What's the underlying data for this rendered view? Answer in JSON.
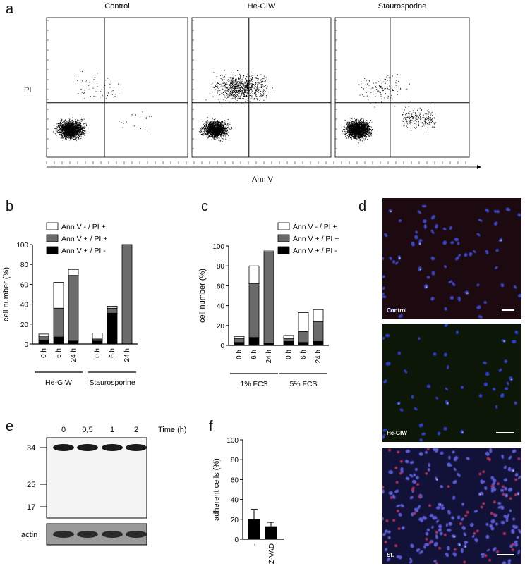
{
  "panels": {
    "a": {
      "letter": "a",
      "plots": [
        {
          "title": "Control",
          "seed": 11,
          "main": 1900,
          "upper": 60,
          "right": 18
        },
        {
          "title": "He-GIW",
          "seed": 23,
          "main": 1500,
          "upper": 900,
          "right": 0
        },
        {
          "title": "Staurosporine",
          "seed": 37,
          "main": 2300,
          "upper": 140,
          "right": 220
        }
      ],
      "ylabel": "PI",
      "xlabel": "Ann V"
    },
    "b": {
      "letter": "b"
    },
    "c": {
      "letter": "c"
    },
    "d": {
      "letter": "d",
      "images": [
        {
          "label": "Control",
          "bg": "#1d0a10",
          "cells": 70,
          "cell_color": "#3b47c8",
          "red": 0
        },
        {
          "label": "He-GIW",
          "bg": "#0d1708",
          "cells": 45,
          "cell_color": "#2f3fd0",
          "red": 0
        },
        {
          "label": "St.",
          "bg": "#121238",
          "cells": 170,
          "cell_color": "#5b5cd6",
          "red": 60
        }
      ]
    },
    "e": {
      "letter": "e"
    },
    "f": {
      "letter": "f"
    }
  },
  "chart_data": [
    {
      "panel": "b",
      "type": "bar",
      "stacked": true,
      "ylabel": "cell number (%)",
      "ylim": [
        0,
        100
      ],
      "yticks": [
        0,
        20,
        40,
        60,
        80,
        100
      ],
      "legend": [
        "Ann V - / PI +",
        "Ann V + / PI +",
        "Ann V + / PI -"
      ],
      "groups": [
        {
          "name": "He-GIW",
          "categories": [
            "0 h",
            "6 h",
            "24 h"
          ],
          "series": {
            "Ann V + / PI -": [
              4,
              7,
              3
            ],
            "Ann V + / PI +": [
              4,
              29,
              66
            ],
            "Ann V - / PI +": [
              2,
              26,
              6
            ]
          }
        },
        {
          "name": "Staurosporine",
          "categories": [
            "0 h",
            "6 h",
            "24 h"
          ],
          "series": {
            "Ann V + / PI -": [
              3,
              31,
              0
            ],
            "Ann V + / PI +": [
              2,
              5,
              100
            ],
            "Ann V - / PI +": [
              6,
              2,
              0
            ]
          }
        }
      ]
    },
    {
      "panel": "c",
      "type": "bar",
      "stacked": true,
      "ylabel": "cell number (%)",
      "ylim": [
        0,
        100
      ],
      "yticks": [
        0,
        20,
        40,
        60,
        80,
        100
      ],
      "legend": [
        "Ann V - / PI +",
        "Ann V + / PI +",
        "Ann V + / PI -"
      ],
      "groups": [
        {
          "name": "1% FCS",
          "categories": [
            "0 h",
            "6 h",
            "24 h"
          ],
          "series": {
            "Ann V + / PI -": [
              3,
              8,
              2
            ],
            "Ann V + / PI +": [
              4,
              54,
              92
            ],
            "Ann V - / PI +": [
              2,
              18,
              1
            ]
          }
        },
        {
          "name": "5% FCS",
          "categories": [
            "0 h",
            "6 h",
            "24 h"
          ],
          "series": {
            "Ann V + / PI -": [
              4,
              3,
              4
            ],
            "Ann V + / PI +": [
              3,
              11,
              20
            ],
            "Ann V - / PI +": [
              3,
              19,
              12
            ]
          }
        }
      ]
    },
    {
      "panel": "e",
      "type": "blot",
      "time_label": "Time (h)",
      "lanes": [
        "0",
        "0,5",
        "1",
        "2"
      ],
      "markers": [
        "34",
        "25",
        "17"
      ],
      "loading_label": "actin"
    },
    {
      "panel": "f",
      "type": "bar",
      "ylabel": "adherent cells (%)",
      "ylim": [
        0,
        100
      ],
      "yticks": [
        0,
        20,
        40,
        60,
        80,
        100
      ],
      "categories": [
        "-",
        "Z-VAD"
      ],
      "values": [
        20,
        13
      ],
      "errors": [
        10,
        4
      ]
    }
  ]
}
